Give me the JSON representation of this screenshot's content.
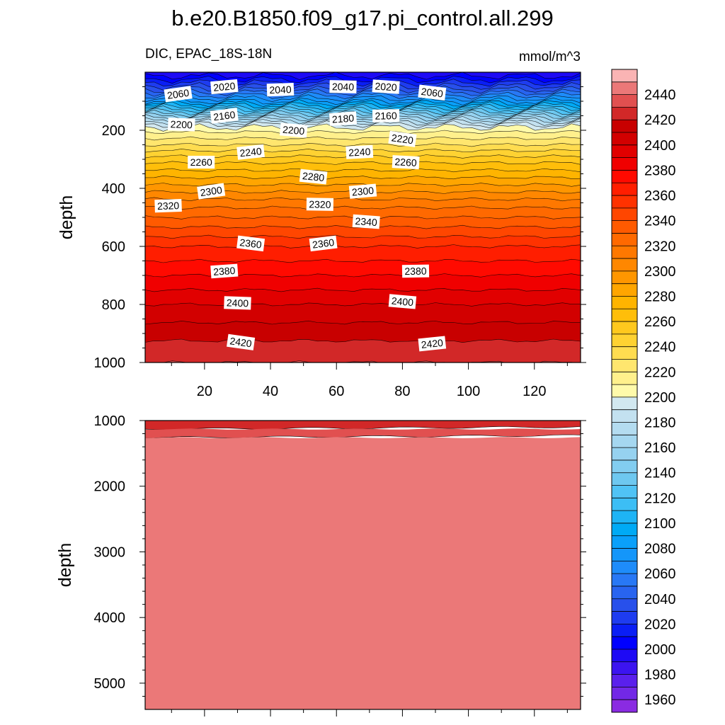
{
  "title": "b.e20.B1850.f09_g17.pi_control.all.299",
  "subtitle_left": "DIC, EPAC_18S-18N",
  "subtitle_right": "mmol/m^3",
  "chart_data": {
    "type": "heatmap",
    "variable": "DIC",
    "units": "mmol/m^3",
    "region": "EPAC_18S-18N",
    "x_axis": {
      "label": "",
      "range": [
        2,
        134
      ],
      "ticks": [
        20,
        40,
        60,
        80,
        100,
        120
      ]
    },
    "panels": [
      {
        "name": "upper",
        "ylabel": "depth",
        "y_range": [
          0,
          1000
        ],
        "y_reversed": true,
        "y_ticks": [
          200,
          400,
          600,
          800,
          1000
        ],
        "contour_labels": [
          {
            "x": 12,
            "depth": 75,
            "value": "2060"
          },
          {
            "x": 26,
            "depth": 50,
            "value": "2020"
          },
          {
            "x": 43,
            "depth": 60,
            "value": "2040"
          },
          {
            "x": 62,
            "depth": 50,
            "value": "2040"
          },
          {
            "x": 75,
            "depth": 50,
            "value": "2020"
          },
          {
            "x": 89,
            "depth": 70,
            "value": "2060"
          },
          {
            "x": 26,
            "depth": 150,
            "value": "2160"
          },
          {
            "x": 62,
            "depth": 160,
            "value": "2180"
          },
          {
            "x": 75,
            "depth": 150,
            "value": "2160"
          },
          {
            "x": 13,
            "depth": 180,
            "value": "2200"
          },
          {
            "x": 47,
            "depth": 200,
            "value": "2200"
          },
          {
            "x": 80,
            "depth": 230,
            "value": "2220"
          },
          {
            "x": 34,
            "depth": 275,
            "value": "2240"
          },
          {
            "x": 67,
            "depth": 275,
            "value": "2240"
          },
          {
            "x": 19,
            "depth": 310,
            "value": "2260"
          },
          {
            "x": 81,
            "depth": 310,
            "value": "2260"
          },
          {
            "x": 53,
            "depth": 360,
            "value": "2280"
          },
          {
            "x": 22,
            "depth": 410,
            "value": "2300"
          },
          {
            "x": 68,
            "depth": 410,
            "value": "2300"
          },
          {
            "x": 9,
            "depth": 460,
            "value": "2320"
          },
          {
            "x": 55,
            "depth": 455,
            "value": "2320"
          },
          {
            "x": 69,
            "depth": 515,
            "value": "2340"
          },
          {
            "x": 34,
            "depth": 590,
            "value": "2360"
          },
          {
            "x": 56,
            "depth": 590,
            "value": "2360"
          },
          {
            "x": 26,
            "depth": 685,
            "value": "2380"
          },
          {
            "x": 84,
            "depth": 685,
            "value": "2380"
          },
          {
            "x": 30,
            "depth": 795,
            "value": "2400"
          },
          {
            "x": 80,
            "depth": 790,
            "value": "2400"
          },
          {
            "x": 31,
            "depth": 930,
            "value": "2420"
          },
          {
            "x": 89,
            "depth": 935,
            "value": "2420"
          }
        ]
      },
      {
        "name": "lower",
        "ylabel": "depth",
        "y_range": [
          1000,
          5400
        ],
        "y_reversed": true,
        "y_ticks": [
          1000,
          2000,
          3000,
          4000,
          5000
        ],
        "bands": [
          {
            "from_depth": 1000,
            "to_depth": 1130,
            "level": 2430
          },
          {
            "from_depth": 1130,
            "to_depth": 1260,
            "level": 2440
          },
          {
            "from_depth": 1260,
            "to_depth": 5400,
            "level": 2450
          }
        ]
      }
    ],
    "upper_profile": [
      {
        "depth": 0,
        "value": 1990
      },
      {
        "depth": 25,
        "value": 2010
      },
      {
        "depth": 60,
        "value": 2040
      },
      {
        "depth": 100,
        "value": 2080
      },
      {
        "depth": 150,
        "value": 2150
      },
      {
        "depth": 180,
        "value": 2190
      },
      {
        "depth": 195,
        "value": 2205
      },
      {
        "depth": 250,
        "value": 2230
      },
      {
        "depth": 300,
        "value": 2255
      },
      {
        "depth": 350,
        "value": 2275
      },
      {
        "depth": 400,
        "value": 2295
      },
      {
        "depth": 450,
        "value": 2315
      },
      {
        "depth": 500,
        "value": 2330
      },
      {
        "depth": 550,
        "value": 2345
      },
      {
        "depth": 600,
        "value": 2360
      },
      {
        "depth": 650,
        "value": 2370
      },
      {
        "depth": 700,
        "value": 2380
      },
      {
        "depth": 750,
        "value": 2390
      },
      {
        "depth": 800,
        "value": 2400
      },
      {
        "depth": 850,
        "value": 2408
      },
      {
        "depth": 900,
        "value": 2416
      },
      {
        "depth": 950,
        "value": 2424
      },
      {
        "depth": 1000,
        "value": 2430
      }
    ],
    "colorbar": {
      "levels": [
        1950,
        1960,
        1970,
        1980,
        1990,
        2000,
        2010,
        2020,
        2030,
        2040,
        2050,
        2060,
        2070,
        2080,
        2090,
        2100,
        2110,
        2120,
        2130,
        2140,
        2150,
        2160,
        2170,
        2180,
        2190,
        2200,
        2210,
        2220,
        2230,
        2240,
        2250,
        2260,
        2270,
        2280,
        2290,
        2300,
        2310,
        2320,
        2330,
        2340,
        2350,
        2360,
        2370,
        2380,
        2390,
        2400,
        2410,
        2420,
        2430,
        2440,
        2450
      ],
      "labels": [
        "1960",
        "1980",
        "2000",
        "2020",
        "2040",
        "2060",
        "2080",
        "2100",
        "2120",
        "2140",
        "2160",
        "2180",
        "2200",
        "2220",
        "2240",
        "2260",
        "2280",
        "2300",
        "2320",
        "2340",
        "2360",
        "2380",
        "2400",
        "2420",
        "2440"
      ],
      "colors": [
        "#8a2be2",
        "#7228e6",
        "#5a20ec",
        "#3c14f0",
        "#1e0af5",
        "#0000ff",
        "#0a1ef5",
        "#1e3cf0",
        "#2850eb",
        "#2864f0",
        "#2878f5",
        "#1e8cfa",
        "#1496fa",
        "#0aa0fa",
        "#00aaf5",
        "#1eb4f5",
        "#3cbef5",
        "#50c3f5",
        "#6ec8f0",
        "#82cdf0",
        "#96d2f0",
        "#a5d7f0",
        "#b4dcf0",
        "#c3e1f0",
        "#d2e8f0",
        "#fffaaa",
        "#fff08c",
        "#ffe66e",
        "#ffdc50",
        "#ffd232",
        "#ffc81e",
        "#ffbe0a",
        "#ffb400",
        "#ffa500",
        "#ff9600",
        "#ff8700",
        "#ff7800",
        "#ff6900",
        "#ff5a00",
        "#ff4600",
        "#ff3200",
        "#ff1e00",
        "#ff0a00",
        "#f00000",
        "#e10000",
        "#d20000",
        "#c80000",
        "#d22828",
        "#e15050",
        "#eb7878",
        "#fab4b4"
      ]
    }
  }
}
